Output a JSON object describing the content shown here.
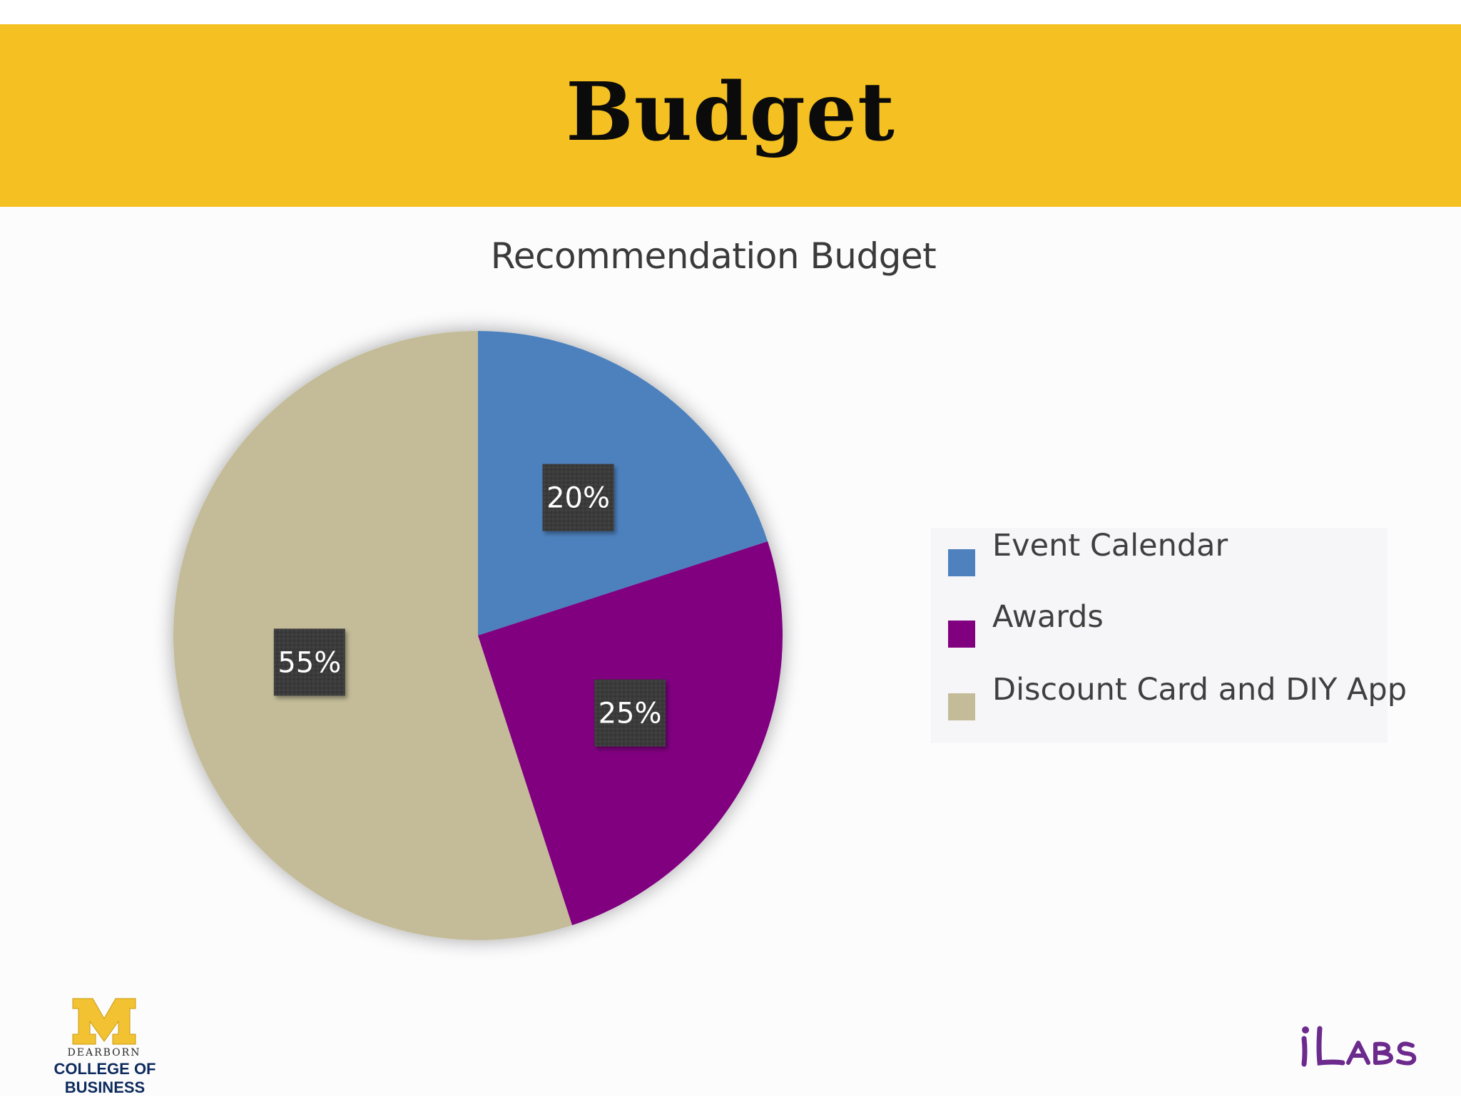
{
  "slide": {
    "title": "Budget"
  },
  "chart_data": {
    "type": "pie",
    "title": "Recommendation Budget",
    "categories": [
      "Event Calendar",
      "Awards",
      "Discount Card and DIY App"
    ],
    "values": [
      20,
      25,
      55
    ],
    "data_labels": [
      "20%",
      "25%",
      "55%"
    ],
    "colors": [
      "#4e81bd",
      "#800080",
      "#c4bc98"
    ],
    "start_angle": "top, clockwise",
    "legend_position": "right"
  },
  "footer": {
    "left_logo": {
      "letter": "M",
      "line1": "DEARBORN",
      "line2": "COLLEGE OF BUSINESS"
    },
    "right_logo": {
      "text": "iLABS"
    }
  }
}
